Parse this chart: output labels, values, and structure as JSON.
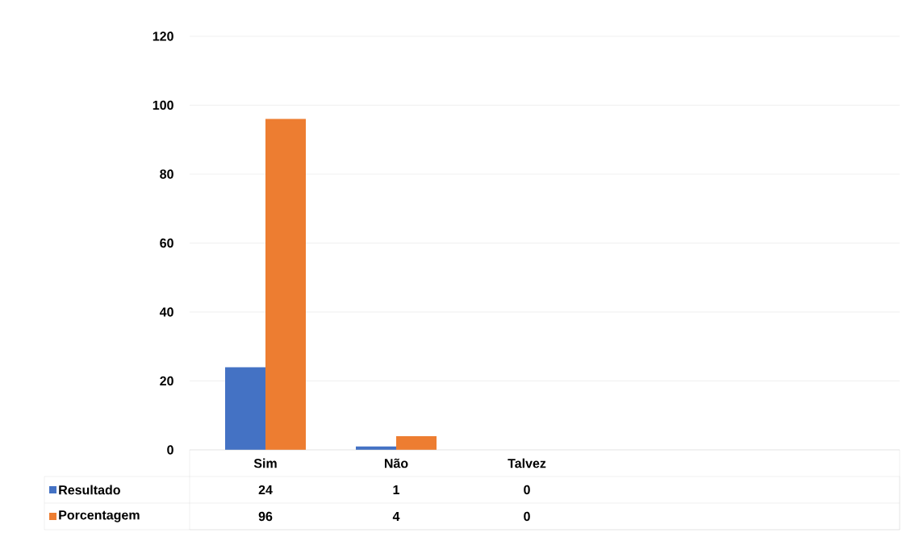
{
  "chart_data": {
    "type": "bar",
    "categories": [
      "Sim",
      "Não",
      "Talvez"
    ],
    "series": [
      {
        "name": "Resultado",
        "color": "#4472c4",
        "values": [
          24,
          1,
          0
        ]
      },
      {
        "name": "Porcentagem",
        "color": "#ed7d31",
        "values": [
          96,
          4,
          0
        ]
      }
    ],
    "ylim": [
      0,
      120
    ],
    "yticks": [
      0,
      20,
      40,
      60,
      80,
      100,
      120
    ],
    "grid": "y",
    "legend": "bottom",
    "data_labels": true
  }
}
